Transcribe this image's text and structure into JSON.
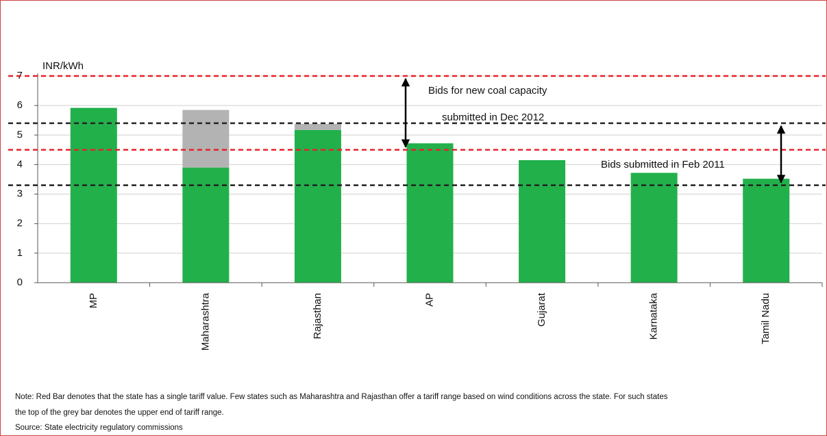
{
  "chart_data": {
    "type": "bar",
    "stacked": true,
    "y_label": "INR/kWh",
    "categories": [
      "MP",
      "Maharashtra",
      "Rajasthan",
      "AP",
      "Gujarat",
      "Karnataka",
      "Tamil Nadu"
    ],
    "series": [
      {
        "color": "#22b04b",
        "values": [
          5.92,
          3.9,
          5.17,
          4.72,
          4.15,
          3.72,
          3.52
        ]
      },
      {
        "color": "#b3b3b3",
        "values": [
          null,
          1.95,
          0.21,
          null,
          null,
          null,
          null
        ]
      }
    ],
    "ylim": [
      0,
      7
    ],
    "yticks": [
      0,
      1,
      2,
      3,
      4,
      5,
      6,
      7
    ],
    "grid": true,
    "reference_lines": [
      {
        "value": 7,
        "color": "#e8202a"
      },
      {
        "value": 4.5,
        "color": "#e8202a"
      },
      {
        "value": 5.4,
        "color": "#222222"
      },
      {
        "value": 3.3,
        "color": "#222222"
      }
    ],
    "arrows": [
      {
        "from": 7,
        "to": 4.5
      },
      {
        "from": 5.4,
        "to": 3.3
      }
    ],
    "annotations": [
      "Bids for new coal capacity",
      "submitted in Dec 2012",
      "Bids submitted in Feb 2011"
    ],
    "note": [
      "Note: Red Bar denotes that the state has a single tariff value. Few states such as Maharashtra and Rajasthan offer a tariff range based on wind conditions across the state. For such states",
      "the top of the grey bar denotes the upper end of tariff range."
    ],
    "source": "Source:  State electricity regulatory commissions"
  }
}
